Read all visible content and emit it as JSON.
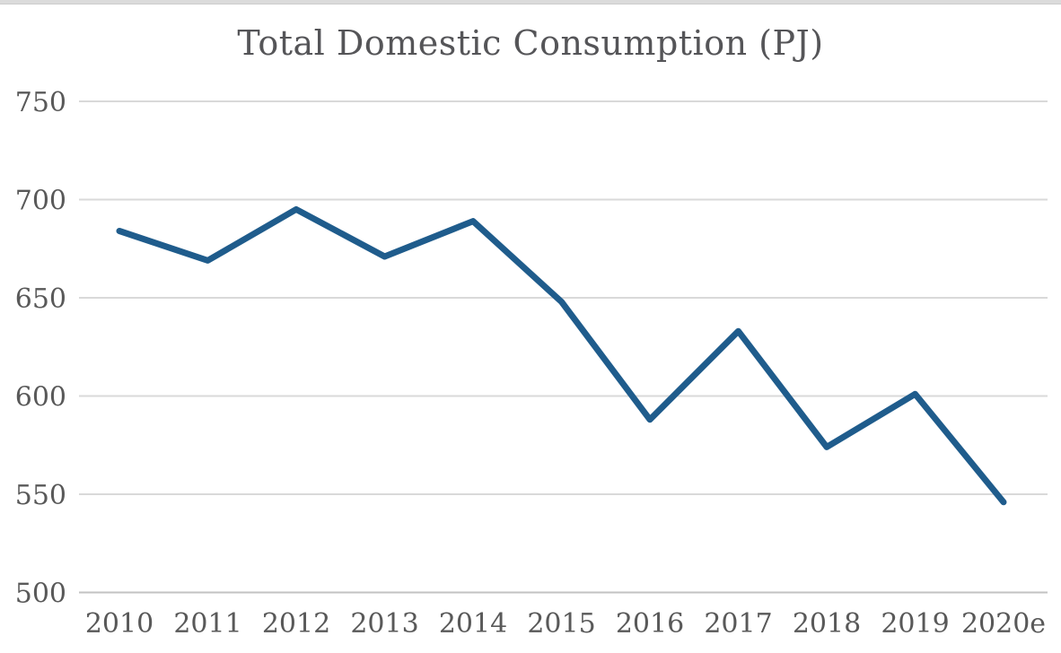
{
  "chart_data": {
    "type": "line",
    "title": "Total Domestic Consumption (PJ)",
    "categories": [
      "2010",
      "2011",
      "2012",
      "2013",
      "2014",
      "2015",
      "2016",
      "2017",
      "2018",
      "2019",
      "2020e"
    ],
    "series": [
      {
        "name": "Total Domestic Consumption (PJ)",
        "values": [
          684,
          669,
          695,
          671,
          689,
          648,
          588,
          633,
          574,
          601,
          546
        ]
      }
    ],
    "xlabel": "",
    "ylabel": "",
    "ylim": [
      500,
      750
    ],
    "yticks": [
      750,
      700,
      650,
      600,
      550,
      500
    ],
    "grid": "horizontal-only",
    "legend": "none",
    "colors": {
      "line": "#1F5C8C",
      "gridline": "#D9D9D9",
      "baseline": "#C2C2C2",
      "title_text": "#555558",
      "tick_text": "#595959",
      "top_strip": "#DBDBDB"
    }
  }
}
